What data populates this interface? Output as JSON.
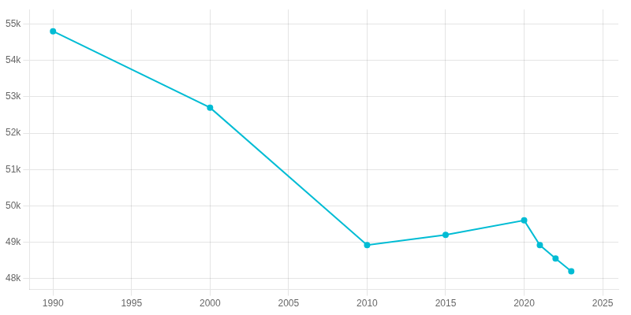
{
  "chart_data": {
    "type": "line",
    "x": [
      1990,
      2000,
      2010,
      2015,
      2020,
      2021,
      2022,
      2023
    ],
    "values": [
      54800,
      52700,
      48920,
      49200,
      49600,
      48920,
      48550,
      48200
    ],
    "color": "#00BCD4",
    "marker": "circle",
    "xlim": [
      1988.5,
      2026
    ],
    "ylim": [
      47700,
      55400
    ],
    "xticks": [
      1990,
      1995,
      2000,
      2005,
      2010,
      2015,
      2020,
      2025
    ],
    "yticks": [
      {
        "value": 48000,
        "label": "48k"
      },
      {
        "value": 49000,
        "label": "49k"
      },
      {
        "value": 50000,
        "label": "50k"
      },
      {
        "value": 51000,
        "label": "51k"
      },
      {
        "value": 52000,
        "label": "52k"
      },
      {
        "value": 53000,
        "label": "53k"
      },
      {
        "value": 54000,
        "label": "54k"
      },
      {
        "value": 55000,
        "label": "55k"
      }
    ],
    "grid": true
  }
}
